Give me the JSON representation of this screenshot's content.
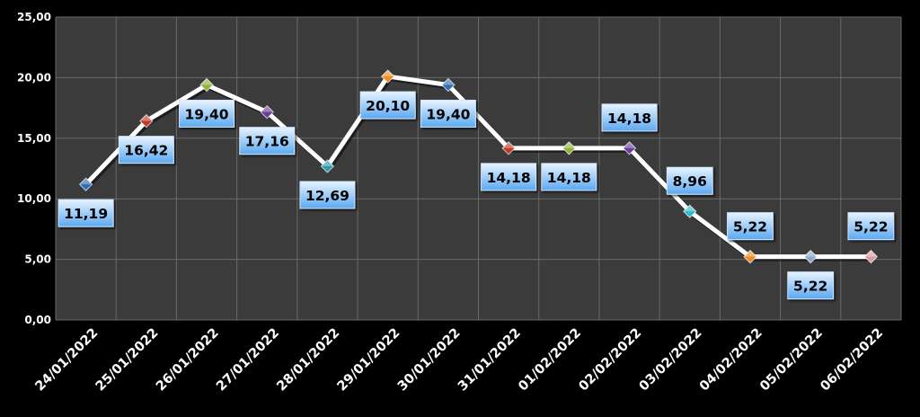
{
  "chart_data": {
    "type": "line",
    "title": "",
    "xlabel": "",
    "ylabel": "",
    "ylim": [
      0,
      25
    ],
    "yticks": [
      "0,00",
      "5,00",
      "10,00",
      "15,00",
      "20,00",
      "25,00"
    ],
    "grid": true,
    "legend": "none",
    "categories": [
      "24/01/2022",
      "25/01/2022",
      "26/01/2022",
      "27/01/2022",
      "28/01/2022",
      "29/01/2022",
      "30/01/2022",
      "31/01/2022",
      "01/02/2022",
      "02/02/2022",
      "03/02/2022",
      "04/02/2022",
      "05/02/2022",
      "06/02/2022"
    ],
    "series": [
      {
        "values": [
          11.19,
          16.42,
          19.4,
          17.16,
          12.69,
          20.1,
          19.4,
          14.18,
          14.18,
          14.18,
          8.96,
          5.22,
          5.22,
          5.22
        ],
        "labels": [
          "11,19",
          "16,42",
          "19,40",
          "17,16",
          "12,69",
          "20,10",
          "19,40",
          "14,18",
          "14,18",
          "14,18",
          "8,96",
          "5,22",
          "5,22",
          "5,22"
        ],
        "label_positions": [
          "below",
          "below",
          "below",
          "below",
          "below",
          "below",
          "below",
          "below",
          "below",
          "above",
          "above",
          "above",
          "below",
          "above"
        ]
      }
    ],
    "marker_colors": [
      "#2f6db5",
      "#c0392b",
      "#8db33a",
      "#6a3d9a",
      "#2a9bb0",
      "#f08a24",
      "#2f6db5",
      "#c0392b",
      "#8db33a",
      "#6a3d9a",
      "#2eb8cf",
      "#f08a24",
      "#8fa7c9",
      "#d99a9a"
    ],
    "colors": {
      "background": "#000000",
      "plot_area": "#3b3b3b",
      "grid": "#6a6a6a",
      "line": "#ffffff",
      "text": "#ffffff",
      "label_fill_top": "#e8f4ff",
      "label_fill_bottom": "#5aa8f0"
    }
  }
}
